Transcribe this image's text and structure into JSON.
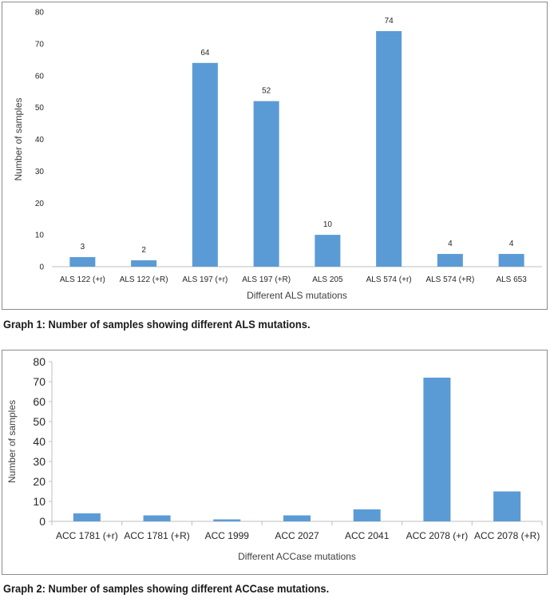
{
  "chart_data": [
    {
      "type": "bar",
      "categories": [
        "ALS 122 (+r)",
        "ALS 122 (+R)",
        "ALS 197 (+r)",
        "ALS 197 (+R)",
        "ALS 205",
        "ALS 574 (+r)",
        "ALS 574 (+R)",
        "ALS 653"
      ],
      "values": [
        3,
        2,
        64,
        52,
        10,
        74,
        4,
        4
      ],
      "data_labels": [
        "3",
        "2",
        "64",
        "52",
        "10",
        "74",
        "4",
        "4"
      ],
      "yticks": [
        "0",
        "10",
        "20",
        "30",
        "40",
        "50",
        "60",
        "70",
        "80"
      ],
      "ylim": [
        0,
        80
      ],
      "xlabel": "Different ALS mutations",
      "ylabel": "Number of samples",
      "grid": false,
      "bar_color": "#5b9bd5"
    },
    {
      "type": "bar",
      "categories": [
        "ACC 1781 (+r)",
        "ACC 1781 (+R)",
        "ACC 1999",
        "ACC 2027",
        "ACC 2041",
        "ACC 2078 (+r)",
        "ACC 2078 (+R)"
      ],
      "values": [
        4,
        3,
        1,
        3,
        6,
        72,
        15
      ],
      "yticks": [
        "0",
        "10",
        "20",
        "30",
        "40",
        "50",
        "60",
        "70",
        "80"
      ],
      "ylim": [
        0,
        80
      ],
      "xlabel": "Different ACCase mutations",
      "ylabel": "Number of samples",
      "grid": false,
      "bar_color": "#5b9bd5"
    }
  ],
  "captions": {
    "graph1": "Graph 1: Number of samples showing different ALS mutations.",
    "graph2": "Graph 2: Number of samples showing different ACCase mutations."
  }
}
